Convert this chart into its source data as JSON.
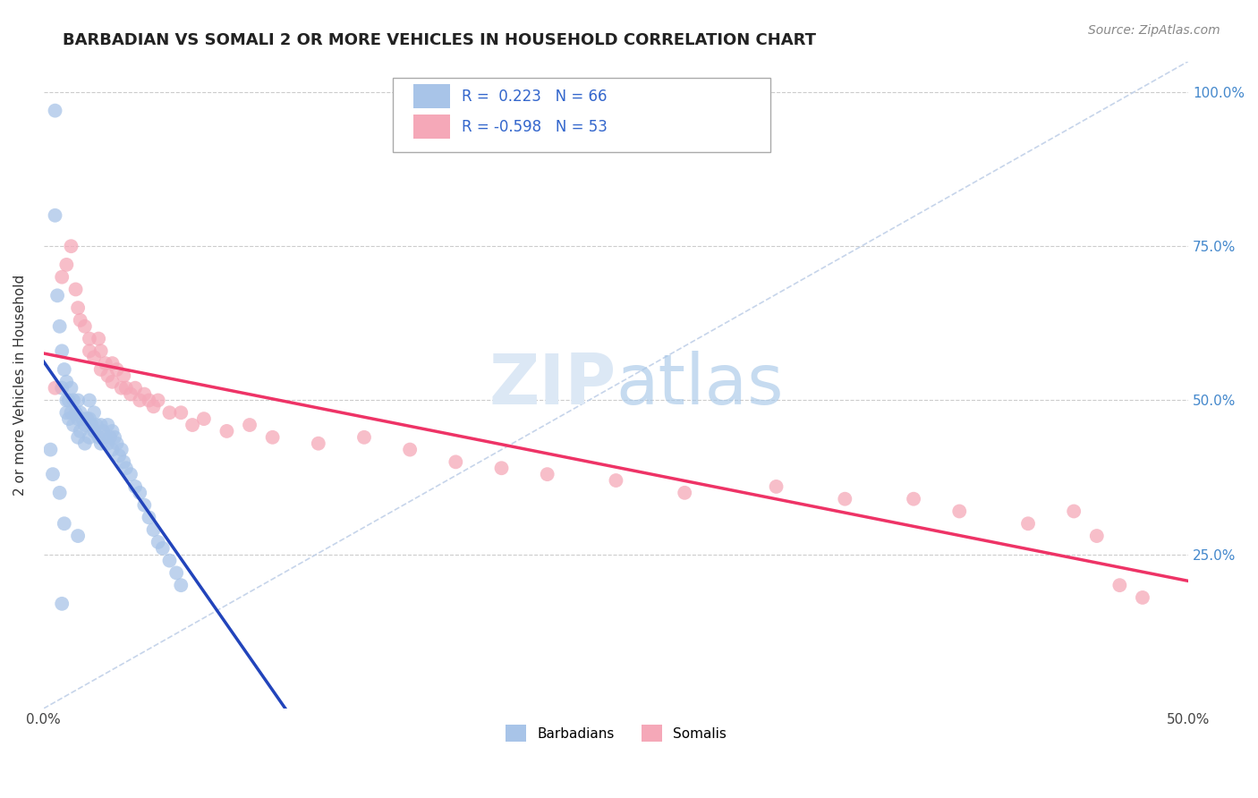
{
  "title": "BARBADIAN VS SOMALI 2 OR MORE VEHICLES IN HOUSEHOLD CORRELATION CHART",
  "source": "Source: ZipAtlas.com",
  "ylabel": "2 or more Vehicles in Household",
  "r_barbadian": 0.223,
  "n_barbadian": 66,
  "r_somali": -0.598,
  "n_somali": 53,
  "barbadian_color": "#a8c4e8",
  "somali_color": "#f5a8b8",
  "trendline_barbadian_color": "#2244bb",
  "trendline_somali_color": "#ee3366",
  "diagonal_color": "#c0d0e8",
  "xmin": 0.0,
  "xmax": 0.5,
  "ymin": 0.0,
  "ymax": 1.05,
  "barbadian_x": [
    0.005,
    0.005,
    0.006,
    0.007,
    0.008,
    0.008,
    0.009,
    0.01,
    0.01,
    0.01,
    0.011,
    0.011,
    0.012,
    0.012,
    0.013,
    0.013,
    0.014,
    0.015,
    0.015,
    0.015,
    0.016,
    0.016,
    0.017,
    0.018,
    0.018,
    0.019,
    0.02,
    0.02,
    0.02,
    0.021,
    0.022,
    0.022,
    0.023,
    0.024,
    0.025,
    0.025,
    0.026,
    0.027,
    0.028,
    0.028,
    0.029,
    0.03,
    0.03,
    0.031,
    0.032,
    0.033,
    0.034,
    0.035,
    0.036,
    0.038,
    0.04,
    0.042,
    0.044,
    0.046,
    0.048,
    0.05,
    0.052,
    0.055,
    0.058,
    0.06,
    0.003,
    0.004,
    0.007,
    0.009,
    0.015,
    0.008
  ],
  "barbadian_y": [
    0.97,
    0.8,
    0.67,
    0.62,
    0.58,
    0.52,
    0.55,
    0.5,
    0.53,
    0.48,
    0.5,
    0.47,
    0.52,
    0.48,
    0.5,
    0.46,
    0.48,
    0.5,
    0.47,
    0.44,
    0.48,
    0.45,
    0.47,
    0.46,
    0.43,
    0.47,
    0.5,
    0.47,
    0.44,
    0.46,
    0.48,
    0.45,
    0.46,
    0.44,
    0.46,
    0.43,
    0.45,
    0.44,
    0.46,
    0.43,
    0.44,
    0.45,
    0.42,
    0.44,
    0.43,
    0.41,
    0.42,
    0.4,
    0.39,
    0.38,
    0.36,
    0.35,
    0.33,
    0.31,
    0.29,
    0.27,
    0.26,
    0.24,
    0.22,
    0.2,
    0.42,
    0.38,
    0.35,
    0.3,
    0.28,
    0.17
  ],
  "somali_x": [
    0.005,
    0.008,
    0.01,
    0.012,
    0.014,
    0.015,
    0.016,
    0.018,
    0.02,
    0.02,
    0.022,
    0.024,
    0.025,
    0.025,
    0.027,
    0.028,
    0.03,
    0.03,
    0.032,
    0.034,
    0.035,
    0.036,
    0.038,
    0.04,
    0.042,
    0.044,
    0.046,
    0.048,
    0.05,
    0.055,
    0.06,
    0.065,
    0.07,
    0.08,
    0.09,
    0.1,
    0.12,
    0.14,
    0.16,
    0.18,
    0.2,
    0.22,
    0.25,
    0.28,
    0.32,
    0.35,
    0.38,
    0.4,
    0.43,
    0.45,
    0.46,
    0.47,
    0.48
  ],
  "somali_y": [
    0.52,
    0.7,
    0.72,
    0.75,
    0.68,
    0.65,
    0.63,
    0.62,
    0.6,
    0.58,
    0.57,
    0.6,
    0.58,
    0.55,
    0.56,
    0.54,
    0.56,
    0.53,
    0.55,
    0.52,
    0.54,
    0.52,
    0.51,
    0.52,
    0.5,
    0.51,
    0.5,
    0.49,
    0.5,
    0.48,
    0.48,
    0.46,
    0.47,
    0.45,
    0.46,
    0.44,
    0.43,
    0.44,
    0.42,
    0.4,
    0.39,
    0.38,
    0.37,
    0.35,
    0.36,
    0.34,
    0.34,
    0.32,
    0.3,
    0.32,
    0.28,
    0.2,
    0.18
  ]
}
